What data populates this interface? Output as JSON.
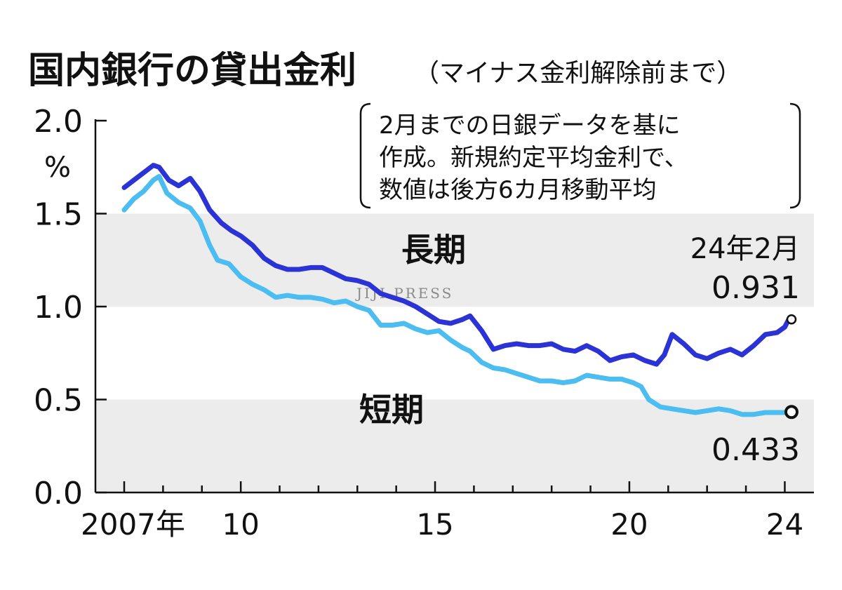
{
  "chart_data": {
    "type": "line",
    "title": "国内銀行の貸出金利",
    "subtitle": "（マイナス金利解除前まで）",
    "note_lines": [
      "2月までの日銀データを基に",
      "作成。新規約定平均金利で、",
      "数値は後方6カ月移動平均"
    ],
    "y_unit": "%",
    "ylim": [
      0,
      2.0
    ],
    "y_ticks": [
      "2.0",
      "1.5",
      "1.0",
      "0.5",
      "0.0"
    ],
    "x_ticks": [
      "2007年",
      "10",
      "15",
      "20",
      "24"
    ],
    "xlim": [
      2007,
      2024.2
    ],
    "grid": "alternating bands",
    "watermark": "JIJI PRESS",
    "end_label": "24年2月",
    "series": [
      {
        "name": "長期",
        "color": "#2b33d6",
        "end_value": "0.931",
        "x": [
          2007.0,
          2007.25,
          2007.5,
          2007.75,
          2007.9,
          2008.15,
          2008.4,
          2008.7,
          2008.95,
          2009.2,
          2009.5,
          2009.75,
          2010.0,
          2010.3,
          2010.6,
          2010.9,
          2011.2,
          2011.5,
          2011.8,
          2012.1,
          2012.4,
          2012.7,
          2013.0,
          2013.3,
          2013.6,
          2013.9,
          2014.2,
          2014.5,
          2014.8,
          2015.1,
          2015.4,
          2015.7,
          2015.9,
          2016.2,
          2016.5,
          2016.8,
          2017.1,
          2017.4,
          2017.7,
          2018.0,
          2018.3,
          2018.6,
          2018.9,
          2019.2,
          2019.5,
          2019.8,
          2020.1,
          2020.4,
          2020.7,
          2020.9,
          2021.1,
          2021.4,
          2021.7,
          2022.0,
          2022.3,
          2022.6,
          2022.9,
          2023.2,
          2023.5,
          2023.8,
          2024.0,
          2024.1
        ],
        "y": [
          1.64,
          1.68,
          1.72,
          1.76,
          1.75,
          1.68,
          1.65,
          1.69,
          1.62,
          1.52,
          1.45,
          1.41,
          1.38,
          1.33,
          1.26,
          1.22,
          1.2,
          1.2,
          1.21,
          1.21,
          1.18,
          1.15,
          1.14,
          1.12,
          1.07,
          1.05,
          1.03,
          1.0,
          0.96,
          0.92,
          0.91,
          0.93,
          0.95,
          0.87,
          0.77,
          0.79,
          0.8,
          0.79,
          0.79,
          0.8,
          0.77,
          0.76,
          0.79,
          0.76,
          0.71,
          0.73,
          0.74,
          0.71,
          0.69,
          0.74,
          0.85,
          0.8,
          0.74,
          0.72,
          0.75,
          0.77,
          0.74,
          0.79,
          0.85,
          0.86,
          0.89,
          0.931
        ]
      },
      {
        "name": "短期",
        "color": "#4bbdf0",
        "end_value": "0.433",
        "x": [
          2007.0,
          2007.25,
          2007.5,
          2007.75,
          2007.9,
          2008.1,
          2008.4,
          2008.7,
          2008.95,
          2009.2,
          2009.4,
          2009.7,
          2010.0,
          2010.3,
          2010.6,
          2010.9,
          2011.2,
          2011.5,
          2011.8,
          2012.1,
          2012.4,
          2012.7,
          2013.0,
          2013.3,
          2013.6,
          2013.9,
          2014.2,
          2014.5,
          2014.8,
          2015.1,
          2015.4,
          2015.7,
          2015.9,
          2016.2,
          2016.5,
          2016.8,
          2017.1,
          2017.4,
          2017.7,
          2018.0,
          2018.3,
          2018.6,
          2018.9,
          2019.2,
          2019.5,
          2019.8,
          2020.1,
          2020.3,
          2020.5,
          2020.8,
          2021.1,
          2021.4,
          2021.7,
          2022.0,
          2022.3,
          2022.6,
          2022.9,
          2023.2,
          2023.5,
          2023.8,
          2024.0,
          2024.1
        ],
        "y": [
          1.52,
          1.58,
          1.62,
          1.68,
          1.7,
          1.61,
          1.56,
          1.53,
          1.46,
          1.33,
          1.25,
          1.23,
          1.16,
          1.12,
          1.09,
          1.05,
          1.06,
          1.05,
          1.05,
          1.04,
          1.02,
          1.03,
          1.0,
          0.98,
          0.9,
          0.9,
          0.91,
          0.88,
          0.86,
          0.87,
          0.82,
          0.78,
          0.76,
          0.7,
          0.67,
          0.66,
          0.64,
          0.62,
          0.6,
          0.6,
          0.59,
          0.6,
          0.63,
          0.62,
          0.61,
          0.61,
          0.59,
          0.57,
          0.5,
          0.46,
          0.45,
          0.44,
          0.43,
          0.44,
          0.45,
          0.44,
          0.42,
          0.42,
          0.43,
          0.43,
          0.43,
          0.433
        ]
      }
    ]
  }
}
